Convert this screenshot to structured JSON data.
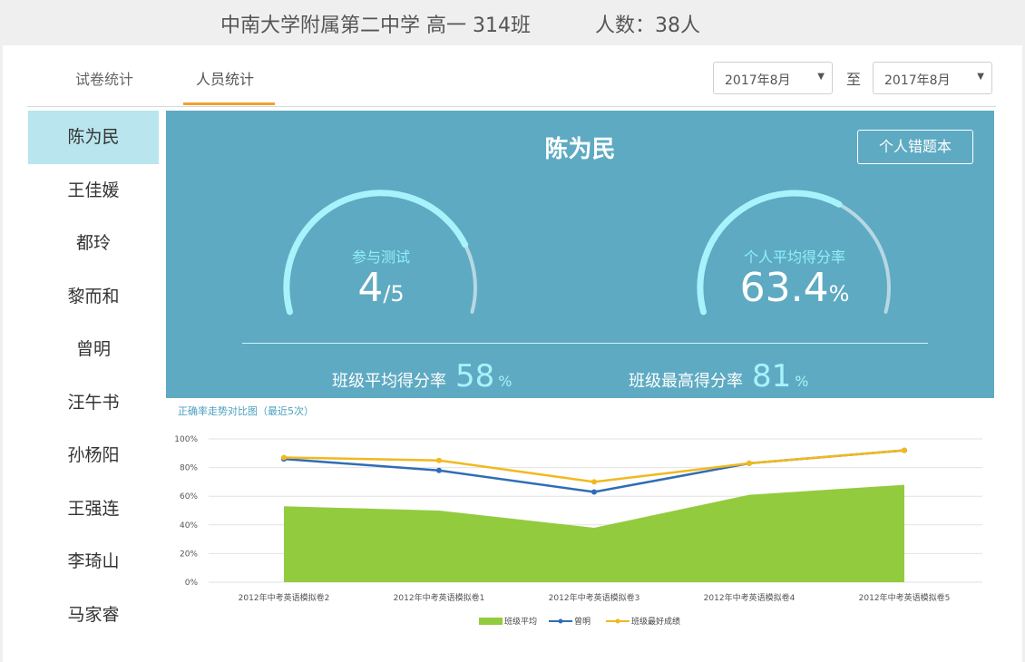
{
  "header": {
    "school": "中南大学附属第二中学  高一  314班",
    "count": "人数：38人"
  },
  "tabs": [
    {
      "label": "试卷统计"
    },
    {
      "label": "人员统计",
      "active": true
    }
  ],
  "date_range": {
    "from": "2017年8月",
    "separator": "至",
    "to": "2017年8月"
  },
  "students": [
    "陈为民",
    "王佳媛",
    "都玲",
    "黎而和",
    "曾明",
    "汪午书",
    "孙杨阳",
    "王强连",
    "李琦山",
    "马家睿"
  ],
  "selected_student": "陈为民",
  "panel": {
    "name": "陈为民",
    "error_book_button": "个人错题本",
    "gauge1": {
      "title": "参与测试",
      "value": "4",
      "suffix": "/5",
      "fraction": 0.8
    },
    "gauge2": {
      "title": "个人平均得分率",
      "value": "63.4",
      "suffix": "%",
      "fraction": 0.634
    },
    "class_avg": {
      "label": "班级平均得分率",
      "value": "58",
      "unit": "%"
    },
    "class_max": {
      "label": "班级最高得分率",
      "value": "81",
      "unit": "%"
    }
  },
  "colors": {
    "panel_bg": "#5eaac2",
    "gauge_active": "#a8f3fb",
    "gauge_track": "#b6d8e3",
    "area": "#93cb3f",
    "line_student": "#2f6db5",
    "line_best": "#f2b81d",
    "tab_underline": "#f0a030"
  },
  "chart_data": {
    "type": "area",
    "title": "正确率走势对比图（最近5次）",
    "categories": [
      "2012年中考英语模拟卷2",
      "2012年中考英语模拟卷1",
      "2012年中考英语模拟卷3",
      "2012年中考英语模拟卷4",
      "2012年中考英语模拟卷5"
    ],
    "y_ticks": [
      "0%",
      "20%",
      "40%",
      "60%",
      "80%",
      "100%"
    ],
    "ylim": [
      0,
      100
    ],
    "series": [
      {
        "name": "班级平均",
        "type": "area",
        "values": [
          53,
          50,
          38,
          61,
          68
        ]
      },
      {
        "name": "曾明",
        "type": "line",
        "values": [
          86,
          78,
          63,
          83,
          92
        ]
      },
      {
        "name": "班级最好成绩",
        "type": "line",
        "values": [
          87,
          85,
          70,
          83,
          92
        ]
      }
    ],
    "legend_position": "bottom",
    "grid": true
  }
}
